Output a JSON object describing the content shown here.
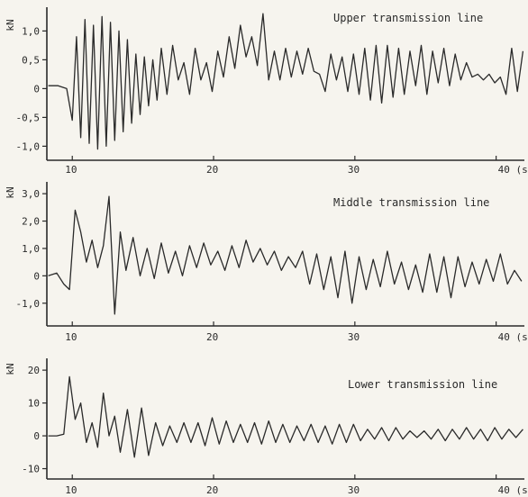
{
  "chart_data": [
    {
      "type": "line",
      "title": "Upper transmission line",
      "ylabel": "kN",
      "xlabel": "",
      "x_tick_labels": [
        "10",
        "20",
        "30",
        "40 (s)"
      ],
      "x_ticks": [
        10,
        20,
        30,
        40
      ],
      "y_tick_labels": [
        "1,0",
        "0,5",
        "0",
        "-0,5",
        "-1,0"
      ],
      "y_ticks": [
        1.0,
        0.5,
        0,
        -0.5,
        -1.0
      ],
      "xlim": [
        8.2,
        42.0
      ],
      "ylim": [
        -1.15,
        1.35
      ],
      "grid": false,
      "series": [
        {
          "x": [
            8.3,
            9.0,
            9.6,
            10.0,
            10.3,
            10.6,
            10.9,
            11.2,
            11.5,
            11.8,
            12.1,
            12.4,
            12.7,
            13.0,
            13.3,
            13.6,
            13.9,
            14.2,
            14.5,
            14.8,
            15.1,
            15.4,
            15.7,
            16.0,
            16.3,
            16.7,
            17.1,
            17.5,
            17.9,
            18.3,
            18.7,
            19.1,
            19.5,
            19.9,
            20.3,
            20.7,
            21.1,
            21.5,
            21.9,
            22.3,
            22.7,
            23.1,
            23.5,
            23.9,
            24.3,
            24.7,
            25.1,
            25.5,
            25.9,
            26.3,
            26.7,
            27.1,
            27.5,
            27.9,
            28.3,
            28.7,
            29.1,
            29.5,
            29.9,
            30.3,
            30.7,
            31.1,
            31.5,
            31.9,
            32.3,
            32.7,
            33.1,
            33.5,
            33.9,
            34.3,
            34.7,
            35.1,
            35.5,
            35.9,
            36.3,
            36.7,
            37.1,
            37.5,
            37.9,
            38.3,
            38.7,
            39.1,
            39.5,
            39.9,
            40.3,
            40.7,
            41.1,
            41.5,
            41.9
          ],
          "y": [
            0.05,
            0.05,
            0.0,
            -0.55,
            0.9,
            -0.85,
            1.2,
            -0.95,
            1.1,
            -1.05,
            1.25,
            -1.0,
            1.15,
            -0.9,
            1.0,
            -0.75,
            0.85,
            -0.6,
            0.6,
            -0.45,
            0.55,
            -0.3,
            0.5,
            -0.2,
            0.7,
            -0.1,
            0.75,
            0.15,
            0.45,
            -0.1,
            0.7,
            0.15,
            0.45,
            -0.05,
            0.65,
            0.2,
            0.9,
            0.35,
            1.1,
            0.55,
            0.9,
            0.4,
            1.3,
            0.15,
            0.65,
            0.15,
            0.7,
            0.2,
            0.65,
            0.25,
            0.7,
            0.3,
            0.25,
            -0.05,
            0.6,
            0.15,
            0.55,
            -0.05,
            0.6,
            -0.1,
            0.7,
            -0.2,
            0.75,
            -0.25,
            0.75,
            -0.15,
            0.7,
            -0.1,
            0.65,
            0.05,
            0.75,
            -0.1,
            0.65,
            0.1,
            0.7,
            0.05,
            0.6,
            0.15,
            0.45,
            0.2,
            0.25,
            0.15,
            0.25,
            0.1,
            0.2,
            -0.1,
            0.7,
            -0.05,
            0.65
          ]
        }
      ]
    },
    {
      "type": "line",
      "title": "Middle transmission line",
      "ylabel": "kN",
      "xlabel": "",
      "x_tick_labels": [
        "10",
        "20",
        "30",
        "40 (s)"
      ],
      "x_ticks": [
        10,
        20,
        30,
        40
      ],
      "y_tick_labels": [
        "3,0",
        "2,0",
        "1,0",
        "0",
        "-1,0"
      ],
      "y_ticks": [
        3.0,
        2.0,
        1.0,
        0,
        -1.0
      ],
      "xlim": [
        8.2,
        42.0
      ],
      "ylim": [
        -1.6,
        3.3
      ],
      "grid": false,
      "series": [
        {
          "x": [
            8.3,
            8.9,
            9.4,
            9.8,
            10.2,
            10.6,
            11.0,
            11.4,
            11.8,
            12.2,
            12.6,
            13.0,
            13.4,
            13.8,
            14.3,
            14.8,
            15.3,
            15.8,
            16.3,
            16.8,
            17.3,
            17.8,
            18.3,
            18.8,
            19.3,
            19.8,
            20.3,
            20.8,
            21.3,
            21.8,
            22.3,
            22.8,
            23.3,
            23.8,
            24.3,
            24.8,
            25.3,
            25.8,
            26.3,
            26.8,
            27.3,
            27.8,
            28.3,
            28.8,
            29.3,
            29.8,
            30.3,
            30.8,
            31.3,
            31.8,
            32.3,
            32.8,
            33.3,
            33.8,
            34.3,
            34.8,
            35.3,
            35.8,
            36.3,
            36.8,
            37.3,
            37.8,
            38.3,
            38.8,
            39.3,
            39.8,
            40.3,
            40.8,
            41.3,
            41.8
          ],
          "y": [
            0.0,
            0.1,
            -0.3,
            -0.5,
            2.4,
            1.6,
            0.5,
            1.3,
            0.3,
            1.1,
            2.9,
            -1.4,
            1.6,
            0.2,
            1.4,
            0.0,
            1.0,
            -0.1,
            1.2,
            0.1,
            0.9,
            0.0,
            1.1,
            0.3,
            1.2,
            0.4,
            0.9,
            0.2,
            1.1,
            0.3,
            1.3,
            0.5,
            1.0,
            0.4,
            0.9,
            0.2,
            0.7,
            0.3,
            0.9,
            -0.3,
            0.8,
            -0.5,
            0.7,
            -0.8,
            0.9,
            -1.0,
            0.7,
            -0.5,
            0.6,
            -0.4,
            0.9,
            -0.3,
            0.5,
            -0.5,
            0.4,
            -0.6,
            0.8,
            -0.6,
            0.7,
            -0.8,
            0.7,
            -0.4,
            0.5,
            -0.3,
            0.6,
            -0.2,
            0.8,
            -0.3,
            0.2,
            -0.2
          ]
        }
      ]
    },
    {
      "type": "line",
      "title": "Lower transmission line",
      "ylabel": "kN",
      "xlabel": "",
      "x_tick_labels": [
        "10",
        "20",
        "30",
        "40 (s)"
      ],
      "x_ticks": [
        10,
        20,
        30,
        40
      ],
      "y_tick_labels": [
        "20",
        "10",
        "0",
        "-10"
      ],
      "y_ticks": [
        20,
        10,
        0,
        -10
      ],
      "xlim": [
        8.2,
        42.0
      ],
      "ylim": [
        -11.5,
        22.5
      ],
      "grid": false,
      "series": [
        {
          "x": [
            8.3,
            8.9,
            9.4,
            9.8,
            10.2,
            10.6,
            11.0,
            11.4,
            11.8,
            12.2,
            12.6,
            13.0,
            13.4,
            13.9,
            14.4,
            14.9,
            15.4,
            15.9,
            16.4,
            16.9,
            17.4,
            17.9,
            18.4,
            18.9,
            19.4,
            19.9,
            20.4,
            20.9,
            21.4,
            21.9,
            22.4,
            22.9,
            23.4,
            23.9,
            24.4,
            24.9,
            25.4,
            25.9,
            26.4,
            26.9,
            27.4,
            27.9,
            28.4,
            28.9,
            29.4,
            29.9,
            30.4,
            30.9,
            31.4,
            31.9,
            32.4,
            32.9,
            33.4,
            33.9,
            34.4,
            34.9,
            35.4,
            35.9,
            36.4,
            36.9,
            37.4,
            37.9,
            38.4,
            38.9,
            39.4,
            39.9,
            40.4,
            40.9,
            41.4,
            41.9
          ],
          "y": [
            0.0,
            0.0,
            0.5,
            18.0,
            5.0,
            10.0,
            -2.0,
            4.0,
            -3.5,
            13.0,
            0.0,
            6.0,
            -5.0,
            8.0,
            -6.5,
            8.5,
            -6.0,
            4.0,
            -3.0,
            3.0,
            -2.0,
            4.0,
            -2.0,
            4.0,
            -3.0,
            5.5,
            -2.5,
            4.5,
            -2.0,
            3.5,
            -2.0,
            4.0,
            -2.5,
            4.5,
            -2.0,
            3.5,
            -2.0,
            3.0,
            -1.5,
            3.5,
            -2.0,
            3.0,
            -2.5,
            3.5,
            -2.0,
            3.5,
            -1.5,
            2.0,
            -1.0,
            2.5,
            -1.5,
            2.5,
            -1.0,
            1.5,
            -0.5,
            1.5,
            -1.0,
            2.0,
            -1.5,
            2.0,
            -1.0,
            2.5,
            -1.0,
            2.0,
            -1.5,
            2.5,
            -1.0,
            2.0,
            -0.5,
            2.0
          ]
        }
      ]
    }
  ],
  "colors": {
    "ink": "#2a2a2a",
    "paper": "#f6f4ee"
  }
}
